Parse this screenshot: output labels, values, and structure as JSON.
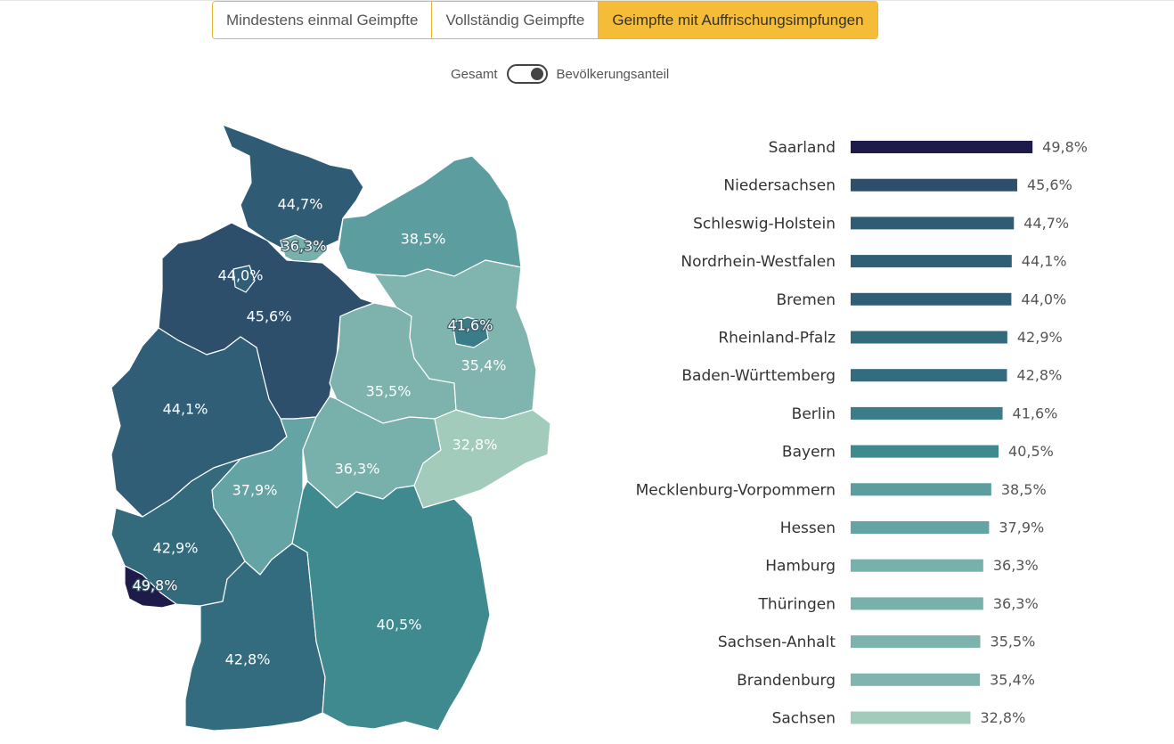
{
  "tabs": [
    {
      "label": "Mindestens einmal Geimpfte",
      "active": false
    },
    {
      "label": "Vollständig Geimpfte",
      "active": false
    },
    {
      "label": "Geimpfte mit Auffrischungsimpfungen",
      "active": true
    }
  ],
  "toggle": {
    "left_label": "Gesamt",
    "right_label": "Bevölkerungsanteil",
    "state": "right"
  },
  "colors": {
    "accent": "#f5bd37",
    "darkest": "#1e1b4b"
  },
  "chart_data": {
    "type": "bar",
    "orientation": "horizontal",
    "categories": [
      "Saarland",
      "Niedersachsen",
      "Schleswig-Holstein",
      "Nordrhein-Westfalen",
      "Bremen",
      "Rheinland-Pfalz",
      "Baden-Württemberg",
      "Berlin",
      "Bayern",
      "Mecklenburg-Vorpommern",
      "Hessen",
      "Hamburg",
      "Thüringen",
      "Sachsen-Anhalt",
      "Brandenburg",
      "Sachsen"
    ],
    "values": [
      49.8,
      45.6,
      44.7,
      44.1,
      44.0,
      42.9,
      42.8,
      41.6,
      40.5,
      38.5,
      37.9,
      36.3,
      36.3,
      35.5,
      35.4,
      32.8
    ],
    "value_labels": [
      "49,8%",
      "45,6%",
      "44,7%",
      "44,1%",
      "44,0%",
      "42,9%",
      "42,8%",
      "41,6%",
      "40,5%",
      "38,5%",
      "37,9%",
      "36,3%",
      "36,3%",
      "35,5%",
      "35,4%",
      "32,8%"
    ],
    "colors": [
      "#1e1b4b",
      "#2d4f6c",
      "#2f5b74",
      "#305e76",
      "#305e76",
      "#336b7d",
      "#336c7e",
      "#3a7c87",
      "#3f8a8f",
      "#5c9ea0",
      "#64a4a4",
      "#78b0ab",
      "#78b0ab",
      "#7eb3ad",
      "#80b4ae",
      "#a2cbbb"
    ],
    "xlim": [
      0,
      50
    ],
    "unit": "%"
  }
}
